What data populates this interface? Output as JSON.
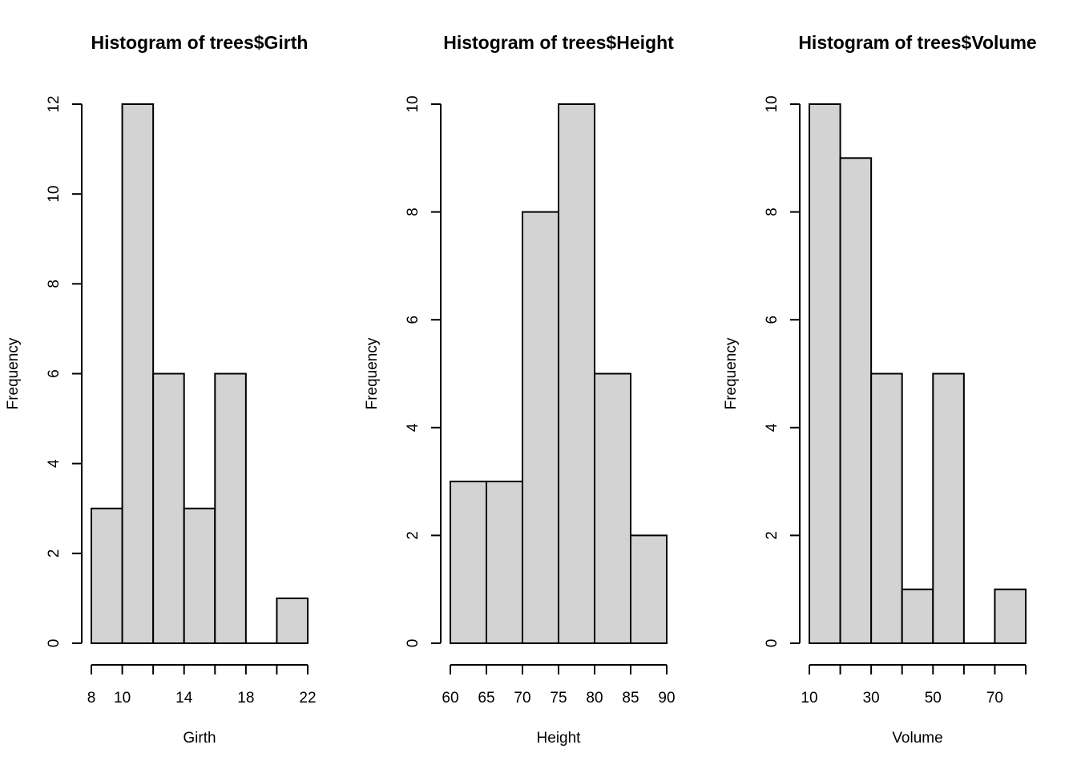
{
  "chart_data": [
    {
      "type": "bar",
      "title": "Histogram of trees$Girth",
      "xlabel": "Girth",
      "ylabel": "Frequency",
      "breaks": [
        8,
        10,
        12,
        14,
        16,
        18,
        20,
        22
      ],
      "values": [
        3,
        12,
        6,
        3,
        6,
        0,
        1
      ],
      "ylim": [
        0,
        12
      ],
      "yticks": [
        0,
        2,
        4,
        6,
        8,
        10,
        12
      ],
      "xticks": [
        8,
        10,
        12,
        14,
        16,
        18,
        20,
        22
      ],
      "xticklabels": [
        "8",
        "10",
        "",
        "14",
        "",
        "18",
        "",
        "22"
      ],
      "grid": false,
      "colors": {
        "bar": "#d3d3d3",
        "border": "#000000"
      }
    },
    {
      "type": "bar",
      "title": "Histogram of trees$Height",
      "xlabel": "Height",
      "ylabel": "Frequency",
      "breaks": [
        60,
        65,
        70,
        75,
        80,
        85,
        90
      ],
      "values": [
        3,
        3,
        8,
        10,
        5,
        2
      ],
      "ylim": [
        0,
        10
      ],
      "yticks": [
        0,
        2,
        4,
        6,
        8,
        10
      ],
      "xticks": [
        60,
        65,
        70,
        75,
        80,
        85,
        90
      ],
      "xticklabels": [
        "60",
        "65",
        "70",
        "75",
        "80",
        "85",
        "90"
      ],
      "grid": false,
      "colors": {
        "bar": "#d3d3d3",
        "border": "#000000"
      }
    },
    {
      "type": "bar",
      "title": "Histogram of trees$Volume",
      "xlabel": "Volume",
      "ylabel": "Frequency",
      "breaks": [
        10,
        20,
        30,
        40,
        50,
        60,
        70,
        80
      ],
      "values": [
        10,
        9,
        5,
        1,
        5,
        0,
        1
      ],
      "ylim": [
        0,
        10
      ],
      "yticks": [
        0,
        2,
        4,
        6,
        8,
        10
      ],
      "xticks": [
        10,
        20,
        30,
        40,
        50,
        60,
        70,
        80
      ],
      "xticklabels": [
        "10",
        "",
        "30",
        "",
        "50",
        "",
        "70",
        ""
      ],
      "grid": false,
      "colors": {
        "bar": "#d3d3d3",
        "border": "#000000"
      }
    }
  ]
}
